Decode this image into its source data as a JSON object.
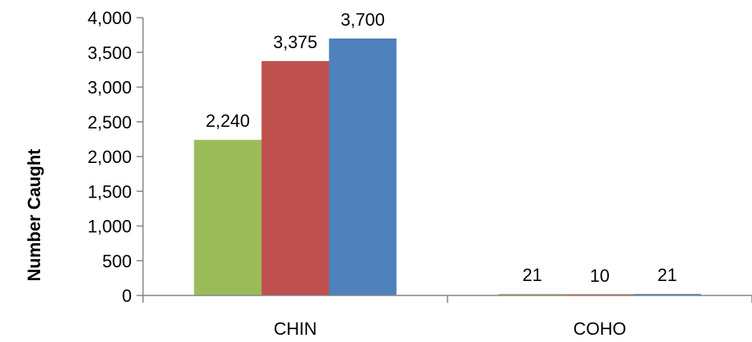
{
  "chart_data": {
    "type": "bar",
    "categories": [
      "CHIN",
      "COHO"
    ],
    "series": [
      {
        "color": "#9BBB59",
        "values": [
          2240,
          21
        ]
      },
      {
        "color": "#C0504D",
        "values": [
          3375,
          10
        ]
      },
      {
        "color": "#4F81BD",
        "values": [
          3700,
          21
        ]
      }
    ],
    "data_labels": [
      [
        "2,240",
        "21"
      ],
      [
        "3,375",
        "10"
      ],
      [
        "3,700",
        "21"
      ]
    ],
    "xlabel": "",
    "ylabel": "Number Caught",
    "ylim": [
      0,
      4000
    ],
    "yticks": [
      0,
      500,
      1000,
      1500,
      2000,
      2500,
      3000,
      3500,
      4000
    ],
    "ytick_labels": [
      "0",
      "500",
      "1,000",
      "1,500",
      "2,000",
      "2,500",
      "3,000",
      "3,500",
      "4,000"
    ],
    "grid": false,
    "legend": "none"
  }
}
